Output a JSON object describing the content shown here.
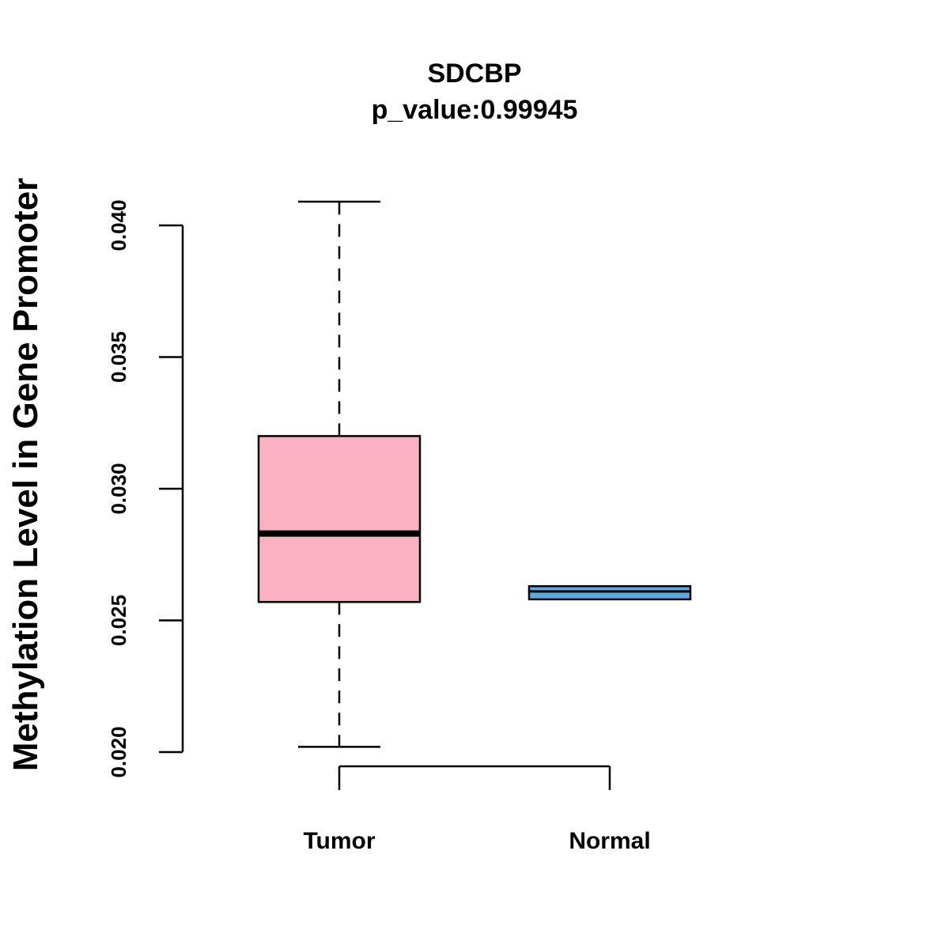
{
  "chart_data": {
    "type": "box",
    "title": "SDCBP",
    "subtitle": "p_value:0.99945",
    "xlabel": "",
    "ylabel": "Methylation Level in Gene Promoter",
    "ylim": [
      0.0194,
      0.041
    ],
    "y_ticks": [
      0.02,
      0.025,
      0.03,
      0.035,
      0.04
    ],
    "y_tick_labels": [
      "0.020",
      "0.025",
      "0.030",
      "0.035",
      "0.040"
    ],
    "categories": [
      "Tumor",
      "Normal"
    ],
    "boxes": [
      {
        "name": "Tumor",
        "whisker_low": 0.0202,
        "q1": 0.0257,
        "median": 0.0283,
        "q3": 0.032,
        "whisker_high": 0.0409,
        "fill": "#FBB1C4"
      },
      {
        "name": "Normal",
        "whisker_low": 0.0258,
        "q1": 0.0258,
        "median": 0.0261,
        "q3": 0.0263,
        "whisker_high": 0.0263,
        "fill": "#5BA9DE"
      }
    ]
  }
}
